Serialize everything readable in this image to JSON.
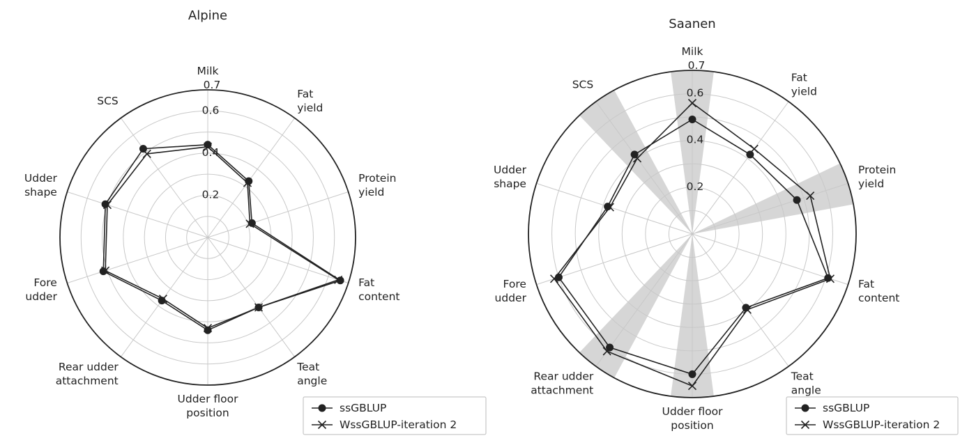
{
  "chart_data": [
    {
      "type": "radar",
      "title": "Alpine",
      "axes": [
        "Milk",
        "Fat\nyield",
        "Protein\nyield",
        "Fat\ncontent",
        "Teat\nangle",
        "Udder floor\nposition",
        "Rear udder\nattachment",
        "Fore\nudder",
        "Udder\nshape",
        "SCS"
      ],
      "rlim": [
        0,
        0.7
      ],
      "rticks": [
        "0.2",
        "0.4",
        "0.6",
        "0.7"
      ],
      "series": [
        {
          "name": "ssGBLUP",
          "marker": "circle",
          "values": [
            0.44,
            0.33,
            0.22,
            0.66,
            0.41,
            0.44,
            0.37,
            0.52,
            0.51,
            0.52
          ]
        },
        {
          "name": "WssGBLUP-iteration 2",
          "marker": "x",
          "values": [
            0.43,
            0.32,
            0.21,
            0.65,
            0.41,
            0.43,
            0.36,
            0.51,
            0.5,
            0.49
          ]
        }
      ],
      "highlight_axes": [],
      "legend": "bottom-right",
      "grid": true
    },
    {
      "type": "radar",
      "title": "Saanen",
      "axes": [
        "Milk",
        "Fat\nyield",
        "Protein\nyield",
        "Fat\ncontent",
        "Teat\nangle",
        "Udder floor\nposition",
        "Rear udder\nattachment",
        "Fore\nudder",
        "Udder\nshape",
        "SCS"
      ],
      "rlim": [
        0,
        0.7
      ],
      "rticks": [
        "0.2",
        "0.4",
        "0.6",
        "0.7"
      ],
      "series": [
        {
          "name": "ssGBLUP",
          "marker": "circle",
          "values": [
            0.49,
            0.42,
            0.47,
            0.61,
            0.39,
            0.6,
            0.6,
            0.6,
            0.38,
            0.42
          ]
        },
        {
          "name": "WssGBLUP-iteration 2",
          "marker": "x",
          "values": [
            0.56,
            0.45,
            0.53,
            0.62,
            0.4,
            0.65,
            0.62,
            0.62,
            0.37,
            0.4
          ]
        }
      ],
      "highlight_axes": [
        "Milk",
        "Protein\nyield",
        "Udder floor\nposition",
        "Rear udder\nattachment",
        "SCS"
      ],
      "legend": "bottom-right",
      "grid": true
    }
  ],
  "colors": {
    "line": "#222222",
    "grid": "#c8c8c8",
    "highlight": "#d6d6d6"
  }
}
